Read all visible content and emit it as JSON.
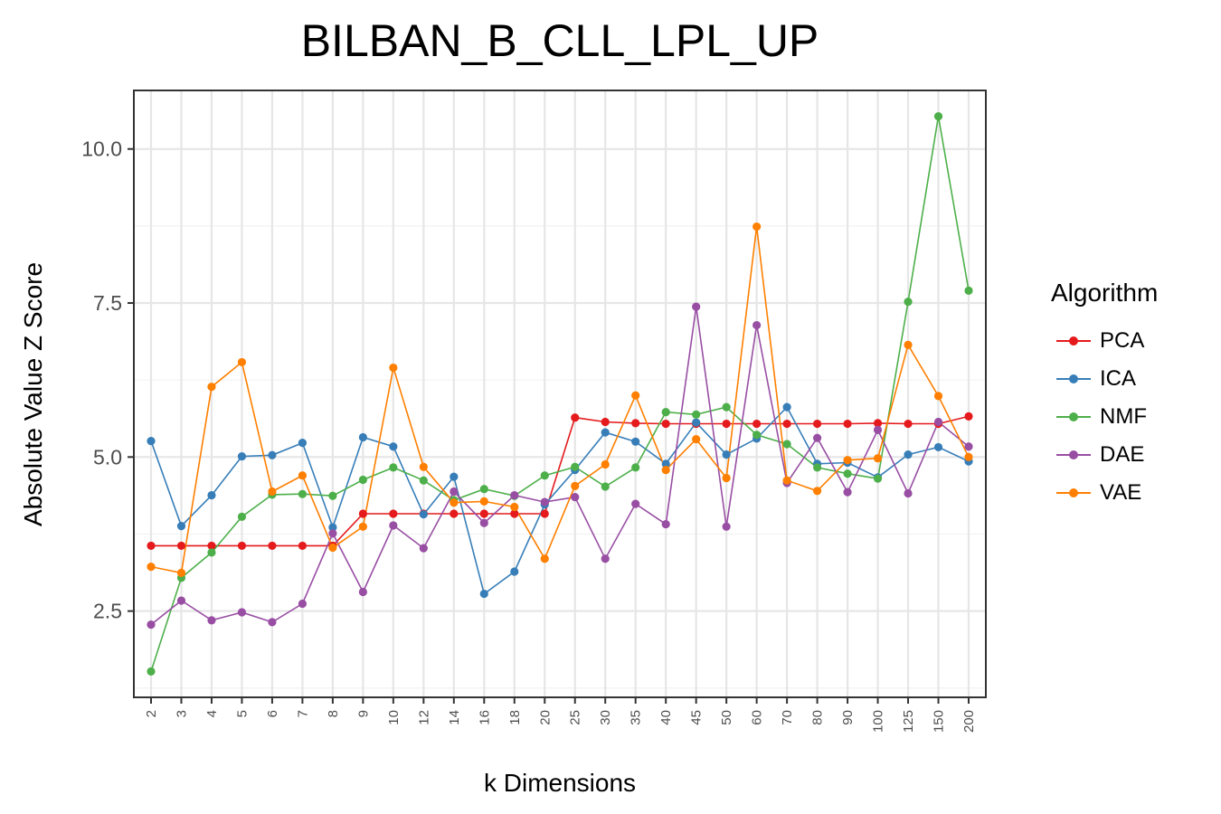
{
  "chart_data": {
    "type": "line",
    "title": "BILBAN_B_CLL_LPL_UP",
    "xlabel": "k Dimensions",
    "ylabel": "Absolute Value Z Score",
    "ylim": [
      1.1,
      10.95
    ],
    "yticks": [
      2.5,
      5.0,
      7.5,
      10.0
    ],
    "ytick_labels": [
      "2.5",
      "5.0",
      "7.5",
      "10.0"
    ],
    "categories": [
      "2",
      "3",
      "4",
      "5",
      "6",
      "7",
      "8",
      "9",
      "10",
      "12",
      "14",
      "16",
      "18",
      "20",
      "25",
      "30",
      "35",
      "40",
      "45",
      "50",
      "60",
      "70",
      "80",
      "90",
      "100",
      "125",
      "150",
      "200"
    ],
    "grid": true,
    "legend_position": "right",
    "legend_title": "Algorithm",
    "series": [
      {
        "name": "PCA",
        "color": "#e41a1c",
        "values": [
          3.56,
          3.56,
          3.56,
          3.56,
          3.56,
          3.56,
          3.56,
          4.08,
          4.08,
          4.08,
          4.08,
          4.08,
          4.08,
          4.08,
          5.64,
          5.57,
          5.55,
          5.54,
          5.54,
          5.54,
          5.54,
          5.54,
          5.54,
          5.54,
          5.55,
          5.54,
          5.54,
          5.66
        ]
      },
      {
        "name": "ICA",
        "color": "#377eb8",
        "values": [
          5.26,
          3.88,
          4.38,
          5.01,
          5.03,
          5.23,
          3.86,
          5.32,
          5.17,
          4.07,
          4.68,
          2.78,
          3.14,
          4.23,
          4.79,
          5.4,
          5.25,
          4.89,
          5.56,
          5.04,
          5.3,
          5.81,
          4.89,
          4.91,
          4.67,
          5.04,
          5.16,
          4.93
        ]
      },
      {
        "name": "NMF",
        "color": "#4daf4a",
        "values": [
          1.52,
          3.04,
          3.45,
          4.03,
          4.39,
          4.4,
          4.37,
          4.63,
          4.83,
          4.62,
          4.3,
          4.48,
          4.37,
          4.7,
          4.84,
          4.52,
          4.83,
          5.73,
          5.69,
          5.81,
          5.36,
          5.21,
          4.83,
          4.73,
          4.65,
          7.52,
          10.53,
          7.7
        ]
      },
      {
        "name": "DAE",
        "color": "#984ea3",
        "values": [
          2.28,
          2.67,
          2.35,
          2.48,
          2.32,
          2.62,
          3.76,
          2.81,
          3.89,
          3.52,
          4.44,
          3.93,
          4.38,
          4.27,
          4.35,
          3.35,
          4.24,
          3.91,
          7.44,
          3.87,
          7.14,
          4.58,
          5.31,
          4.43,
          5.44,
          4.41,
          5.57,
          5.17
        ]
      },
      {
        "name": "VAE",
        "color": "#ff7f00",
        "values": [
          3.22,
          3.12,
          6.14,
          6.54,
          4.44,
          4.7,
          3.53,
          3.87,
          6.45,
          4.84,
          4.26,
          4.28,
          4.19,
          3.35,
          4.53,
          4.88,
          6.0,
          4.79,
          5.29,
          4.66,
          8.74,
          4.62,
          4.45,
          4.95,
          4.98,
          6.82,
          5.99,
          5.0
        ]
      }
    ]
  }
}
